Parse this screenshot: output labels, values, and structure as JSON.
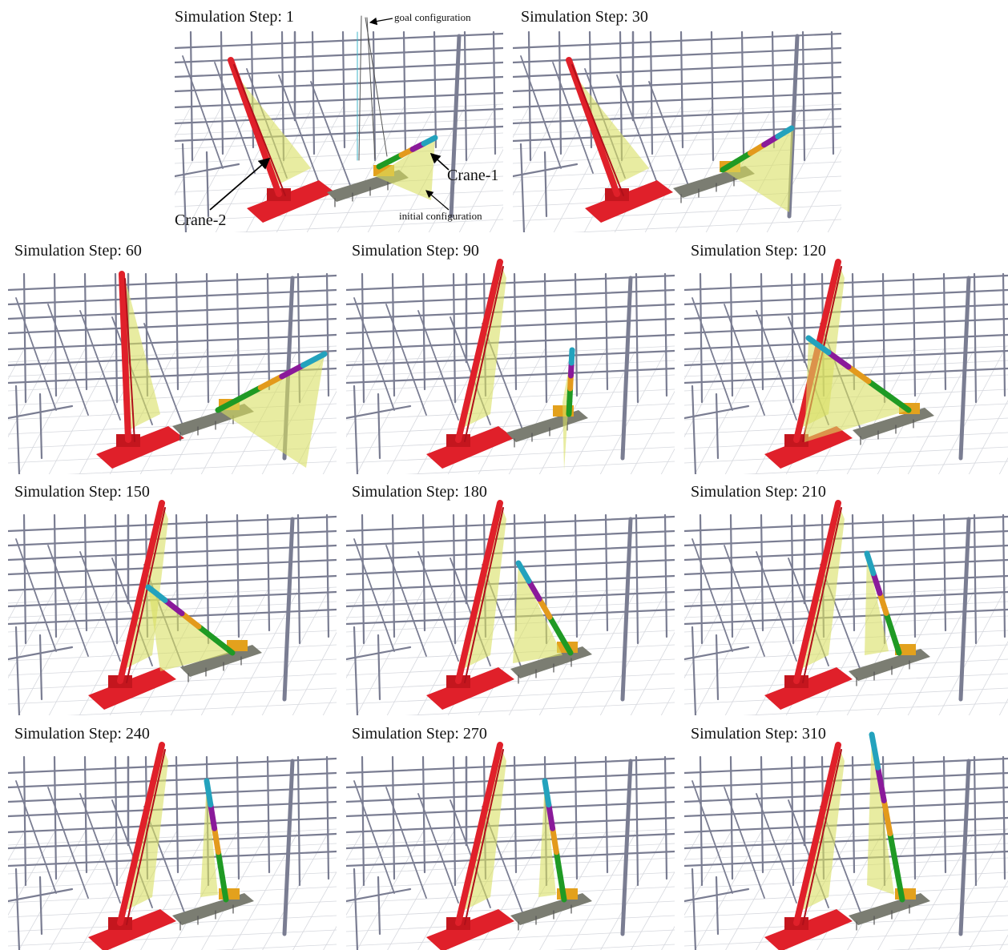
{
  "panels": [
    {
      "caption": "Simulation Step: 1",
      "crane1_state": "initial",
      "crane2_state": "tall"
    },
    {
      "caption": "Simulation Step: 30",
      "crane1_state": "low-right",
      "crane2_state": "tall"
    },
    {
      "caption": "Simulation Step: 60",
      "crane1_state": "low-right-wide",
      "crane2_state": "vertical"
    },
    {
      "caption": "Simulation Step: 90",
      "crane1_state": "vertical-center",
      "crane2_state": "tall-right"
    },
    {
      "caption": "Simulation Step: 120",
      "crane1_state": "over-left",
      "crane2_state": "tall-right"
    },
    {
      "caption": "Simulation Step: 150",
      "crane1_state": "over-left-mid",
      "crane2_state": "tall-right"
    },
    {
      "caption": "Simulation Step: 180",
      "crane1_state": "raising",
      "crane2_state": "tall-right"
    },
    {
      "caption": "Simulation Step: 210",
      "crane1_state": "near-vertical",
      "crane2_state": "tall-right"
    },
    {
      "caption": "Simulation Step: 240",
      "crane1_state": "vertical",
      "crane2_state": "tall-right"
    },
    {
      "caption": "Simulation Step: 270",
      "crane1_state": "vertical",
      "crane2_state": "tall-right"
    },
    {
      "caption": "Simulation Step: 310",
      "crane1_state": "goal",
      "crane2_state": "tall-right"
    }
  ],
  "annotations": {
    "goal": "goal configuration",
    "crane1": "Crane-1",
    "crane2": "Crane-2",
    "initial": "initial configuration"
  },
  "colors": {
    "structure": "#7a7d92",
    "ground_grid": "#d6d8de",
    "crane2_boom": "#e0202a",
    "crane_base_gray": "#7b7d72",
    "crane1_body": "#e3a11d",
    "sweep_fill": "#d9df63",
    "seg_green": "#1f9a24",
    "seg_orange": "#e39a1c",
    "seg_purple": "#8a1a9a",
    "seg_cyan": "#23a2bd",
    "goal_lines": "#555555"
  }
}
